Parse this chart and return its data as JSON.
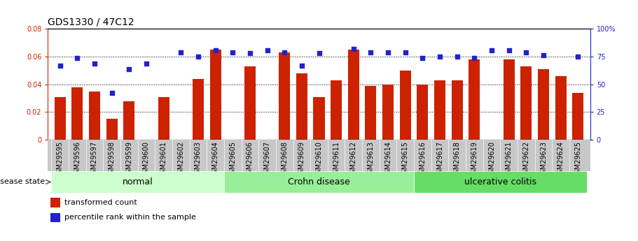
{
  "title": "GDS1330 / 47C12",
  "samples": [
    "GSM29595",
    "GSM29596",
    "GSM29597",
    "GSM29598",
    "GSM29599",
    "GSM29600",
    "GSM29601",
    "GSM29602",
    "GSM29603",
    "GSM29604",
    "GSM29605",
    "GSM29606",
    "GSM29607",
    "GSM29608",
    "GSM29609",
    "GSM29610",
    "GSM29611",
    "GSM29612",
    "GSM29613",
    "GSM29614",
    "GSM29615",
    "GSM29616",
    "GSM29617",
    "GSM29618",
    "GSM29619",
    "GSM29620",
    "GSM29621",
    "GSM29622",
    "GSM29623",
    "GSM29624",
    "GSM29625"
  ],
  "bar_values": [
    0.031,
    0.038,
    0.035,
    0.015,
    0.028,
    0.0,
    0.031,
    0.0,
    0.044,
    0.065,
    0.0,
    0.053,
    0.0,
    0.063,
    0.048,
    0.031,
    0.043,
    0.065,
    0.039,
    0.04,
    0.05,
    0.04,
    0.043,
    0.043,
    0.058,
    0.0,
    0.058,
    0.053,
    0.051,
    0.046,
    0.034
  ],
  "dot_values_pct": [
    67,
    74,
    69,
    42,
    64,
    69,
    0,
    79,
    75,
    81,
    79,
    78,
    81,
    79,
    67,
    78,
    0,
    82,
    79,
    79,
    79,
    74,
    75,
    75,
    74,
    81,
    81,
    79,
    76,
    0,
    75
  ],
  "groups": [
    {
      "label": "normal",
      "start": 0,
      "end": 10,
      "color": "#ccffcc"
    },
    {
      "label": "Crohn disease",
      "start": 10,
      "end": 21,
      "color": "#99ee99"
    },
    {
      "label": "ulcerative colitis",
      "start": 21,
      "end": 31,
      "color": "#66dd66"
    }
  ],
  "bar_color": "#cc2200",
  "dot_color": "#2222cc",
  "ylim_left": [
    0,
    0.08
  ],
  "ylim_right": [
    0,
    100
  ],
  "yticks_left": [
    0,
    0.02,
    0.04,
    0.06,
    0.08
  ],
  "yticks_right": [
    0,
    25,
    50,
    75,
    100
  ],
  "ytick_labels_left": [
    "0",
    "0.02",
    "0.04",
    "0.06",
    "0.08"
  ],
  "ytick_labels_right": [
    "0",
    "25",
    "50",
    "75",
    "100%"
  ],
  "grid_values": [
    0.02,
    0.04,
    0.06
  ],
  "legend_items": [
    {
      "label": "transformed count",
      "color": "#cc2200"
    },
    {
      "label": "percentile rank within the sample",
      "color": "#2222cc"
    }
  ],
  "disease_state_label": "disease state",
  "background_color": "#ffffff",
  "title_fontsize": 10,
  "tick_fontsize": 7,
  "group_label_fontsize": 9
}
